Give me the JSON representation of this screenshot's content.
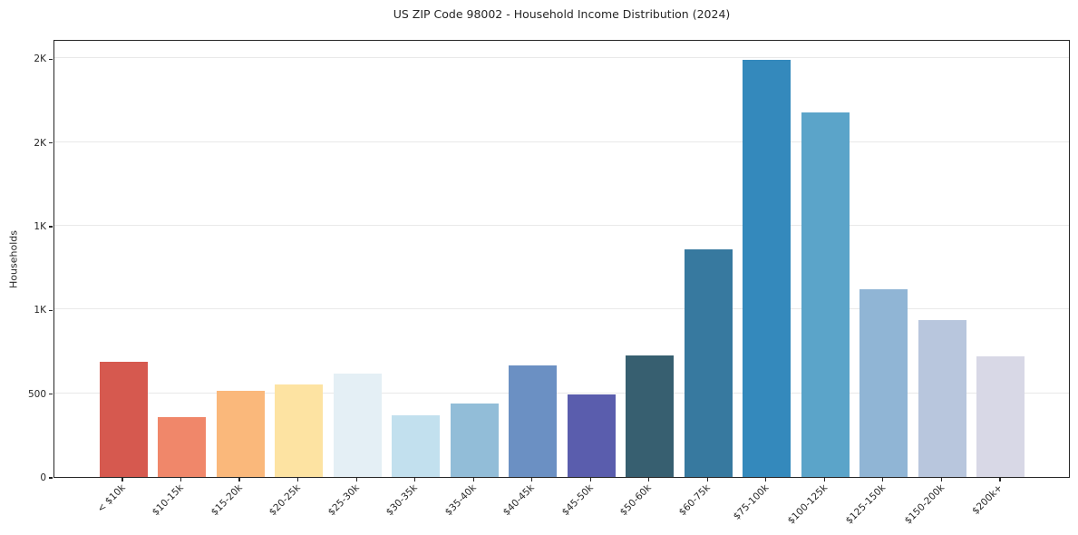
{
  "chart_data": {
    "type": "bar",
    "title": "US ZIP Code 98002 - Household Income Distribution (2024)",
    "xlabel": "",
    "ylabel": "Households",
    "categories": [
      "< $10k",
      "$10-15k",
      "$15-20k",
      "$20-25k",
      "$25-30k",
      "$30-35k",
      "$35-40k",
      "$40-45k",
      "$45-50k",
      "$50-60k",
      "$60-75k",
      "$75-100k",
      "$100-125k",
      "$125-150k",
      "$150-200k",
      "$200k+"
    ],
    "values": [
      687,
      359,
      513,
      552,
      615,
      366,
      441,
      666,
      494,
      727,
      1359,
      2489,
      2176,
      1120,
      935,
      721
    ],
    "bar_colors": [
      "#d6594f",
      "#f0876a",
      "#fab87b",
      "#fde3a2",
      "#e4eff5",
      "#c2e0ee",
      "#92bdd8",
      "#6b90c3",
      "#5a5dad",
      "#375f70",
      "#37799f",
      "#3489bc",
      "#5ba4c9",
      "#90b5d5",
      "#b8c6dd",
      "#d8d8e6"
    ],
    "ylim": [
      0,
      2615
    ],
    "yticks": [
      {
        "value": 0,
        "label": "0"
      },
      {
        "value": 500,
        "label": "500"
      },
      {
        "value": 1000,
        "label": "1K"
      },
      {
        "value": 1500,
        "label": "1K"
      },
      {
        "value": 2000,
        "label": "2K"
      },
      {
        "value": 2500,
        "label": "2K"
      }
    ],
    "grid": "horizontal",
    "legend": "none",
    "xtick_rotation": 45
  },
  "style": {
    "background": "#ffffff",
    "spine_color": "#262626",
    "grid_color": "#e9e9e9",
    "text_color": "#262626"
  }
}
